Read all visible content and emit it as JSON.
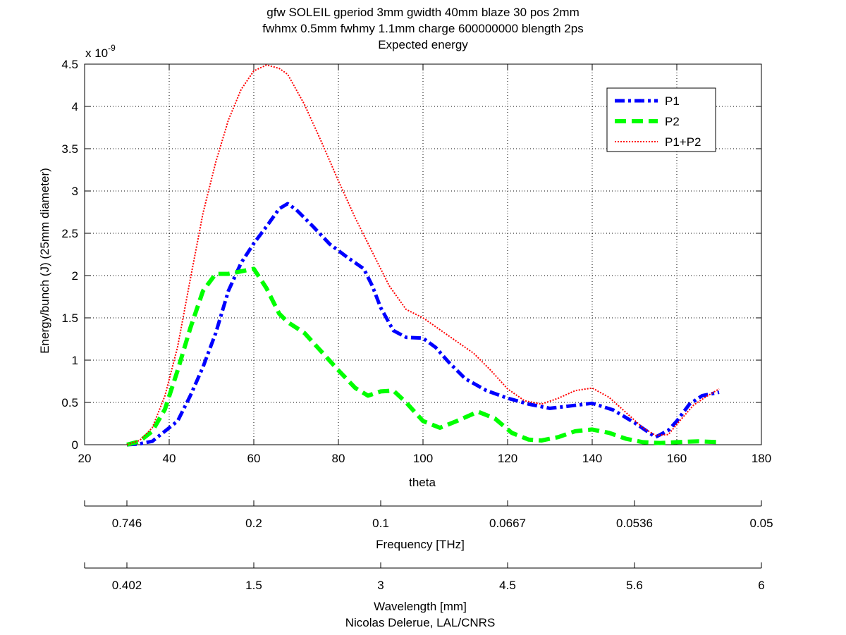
{
  "chart_data": {
    "type": "line",
    "title_lines": [
      "gfw SOLEIL gperiod 3mm gwidth 40mm blaze 30 pos 2mm",
      "fwhmx 0.5mm fwhmy 1.1mm charge 600000000 blength 2ps",
      "Expected energy"
    ],
    "xlabel": "theta",
    "ylabel": "Energy/bunch (J)  (25mm diameter)",
    "y_multiplier": "x 10",
    "y_multiplier_exp": "-9",
    "xlim": [
      20,
      180
    ],
    "ylim": [
      0,
      4.5
    ],
    "grid": true,
    "legend_position": "top-right",
    "x_ticks": [
      20,
      40,
      60,
      80,
      100,
      120,
      140,
      160,
      180
    ],
    "y_ticks": [
      0,
      0.5,
      1,
      1.5,
      2,
      2.5,
      3,
      3.5,
      4,
      4.5
    ],
    "x_tick_labels": [
      "20",
      "40",
      "60",
      "80",
      "100",
      "120",
      "140",
      "160",
      "180"
    ],
    "y_tick_labels": [
      "0",
      "0.5",
      "1",
      "1.5",
      "2",
      "2.5",
      "3",
      "3.5",
      "4",
      "4.5"
    ],
    "series": [
      {
        "name": "P1",
        "color": "#0000ff",
        "style": "dashdot",
        "x": [
          30,
          33,
          36,
          39,
          42,
          45,
          48,
          51,
          54,
          57,
          60,
          63,
          66,
          68,
          70,
          74,
          78,
          82,
          86,
          88,
          90,
          93,
          96,
          100,
          103,
          106,
          110,
          115,
          120,
          125,
          130,
          135,
          140,
          145,
          150,
          155,
          158,
          160,
          163,
          166,
          170
        ],
        "y": [
          0,
          0.01,
          0.04,
          0.16,
          0.28,
          0.58,
          0.92,
          1.32,
          1.82,
          2.15,
          2.38,
          2.58,
          2.79,
          2.85,
          2.78,
          2.58,
          2.37,
          2.22,
          2.08,
          1.88,
          1.62,
          1.35,
          1.27,
          1.26,
          1.15,
          0.98,
          0.78,
          0.64,
          0.55,
          0.48,
          0.43,
          0.46,
          0.49,
          0.41,
          0.26,
          0.09,
          0.17,
          0.28,
          0.48,
          0.58,
          0.62
        ]
      },
      {
        "name": "P2",
        "color": "#00ff00",
        "style": "dashed",
        "x": [
          30,
          33,
          36,
          39,
          42,
          45,
          48,
          51,
          54,
          57,
          60,
          63,
          66,
          68,
          72,
          76,
          80,
          84,
          87,
          90,
          93,
          96,
          100,
          104,
          108,
          113,
          117,
          121,
          125,
          128,
          132,
          136,
          140,
          144,
          148,
          152,
          156,
          160,
          165,
          170
        ],
        "y": [
          0,
          0.04,
          0.16,
          0.42,
          0.88,
          1.38,
          1.82,
          2.02,
          2.02,
          2.05,
          2.08,
          1.85,
          1.55,
          1.45,
          1.32,
          1.1,
          0.88,
          0.67,
          0.58,
          0.63,
          0.64,
          0.5,
          0.28,
          0.2,
          0.28,
          0.39,
          0.31,
          0.14,
          0.06,
          0.05,
          0.09,
          0.16,
          0.18,
          0.14,
          0.07,
          0.03,
          0.02,
          0.03,
          0.04,
          0.03
        ]
      },
      {
        "name": "P1+P2",
        "color": "#ff0000",
        "style": "dotted",
        "x": [
          30,
          33,
          36,
          39,
          42,
          45,
          48,
          51,
          54,
          57,
          60,
          63,
          66,
          68,
          72,
          76,
          80,
          84,
          88,
          92,
          96,
          100,
          104,
          108,
          112,
          116,
          120,
          124,
          128,
          132,
          136,
          140,
          144,
          148,
          152,
          155,
          158,
          161,
          164,
          167,
          170
        ],
        "y": [
          0,
          0.05,
          0.2,
          0.58,
          1.16,
          1.96,
          2.74,
          3.34,
          3.84,
          4.2,
          4.42,
          4.49,
          4.45,
          4.38,
          4.02,
          3.58,
          3.12,
          2.68,
          2.28,
          1.88,
          1.6,
          1.5,
          1.36,
          1.22,
          1.08,
          0.88,
          0.66,
          0.52,
          0.48,
          0.55,
          0.64,
          0.67,
          0.56,
          0.38,
          0.2,
          0.11,
          0.12,
          0.3,
          0.47,
          0.57,
          0.66
        ]
      }
    ],
    "secondary_axes": [
      {
        "label": "Frequency [THz]",
        "tick_labels": [
          "0.746",
          "0.2",
          "0.1",
          "0.0667",
          "0.0536",
          "0.05"
        ]
      },
      {
        "label": "Wavelength [mm]",
        "tick_labels": [
          "0.402",
          "1.5",
          "3",
          "4.5",
          "5.6",
          "6"
        ]
      }
    ],
    "credit": "Nicolas Delerue, LAL/CNRS"
  }
}
